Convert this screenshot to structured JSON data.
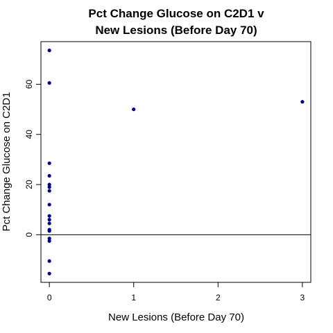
{
  "chart_data": {
    "type": "scatter",
    "title_lines": [
      "Pct Change Glucose on C2D1 v",
      "New Lesions (Before Day 70)"
    ],
    "xlabel": "New Lesions (Before Day 70)",
    "ylabel": "Pct Change Glucose on C2D1",
    "xlim": [
      -0.1,
      3.1
    ],
    "ylim": [
      -19,
      77
    ],
    "x_ticks": [
      0,
      1,
      2,
      3
    ],
    "y_ticks": [
      0,
      20,
      40,
      60
    ],
    "reference_line_y": 0,
    "point_color": "#00008B",
    "grid": false,
    "legend": "none",
    "points": [
      {
        "x": 0,
        "y": 73.5
      },
      {
        "x": 0,
        "y": 60.5
      },
      {
        "x": 0,
        "y": 28.5
      },
      {
        "x": 0,
        "y": 23.5
      },
      {
        "x": 0,
        "y": 20
      },
      {
        "x": 0,
        "y": 19
      },
      {
        "x": 0,
        "y": 17.5
      },
      {
        "x": 0,
        "y": 12
      },
      {
        "x": 0,
        "y": 7.5
      },
      {
        "x": 0,
        "y": 6
      },
      {
        "x": 0,
        "y": 4.5
      },
      {
        "x": 0,
        "y": 2
      },
      {
        "x": 0,
        "y": 1.5
      },
      {
        "x": 0,
        "y": -1.5
      },
      {
        "x": 0,
        "y": -2.5
      },
      {
        "x": 0,
        "y": -10.5
      },
      {
        "x": 0,
        "y": -15.5
      },
      {
        "x": 1,
        "y": 50
      },
      {
        "x": 3,
        "y": 53
      }
    ]
  }
}
